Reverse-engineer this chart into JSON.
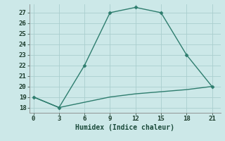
{
  "xlabel": "Humidex (Indice chaleur)",
  "line1_x": [
    0,
    3,
    6,
    9,
    12,
    15,
    18,
    21
  ],
  "line1_y": [
    19,
    18,
    22,
    27,
    27.5,
    27,
    23,
    20
  ],
  "line2_x": [
    0,
    3,
    6,
    9,
    12,
    15,
    18,
    21
  ],
  "line2_y": [
    19,
    18,
    18.5,
    19,
    19.3,
    19.5,
    19.7,
    20
  ],
  "line_color": "#2e7d6e",
  "bg_color": "#cce8e8",
  "grid_color": "#aacece",
  "xlim": [
    -0.5,
    22
  ],
  "ylim": [
    17.5,
    27.8
  ],
  "xticks": [
    0,
    3,
    6,
    9,
    12,
    15,
    18,
    21
  ],
  "yticks": [
    18,
    19,
    20,
    21,
    22,
    23,
    24,
    25,
    26,
    27
  ],
  "marker": "D",
  "markersize": 2.5,
  "linewidth": 1.0,
  "tick_fontsize": 6.5,
  "xlabel_fontsize": 7.0
}
